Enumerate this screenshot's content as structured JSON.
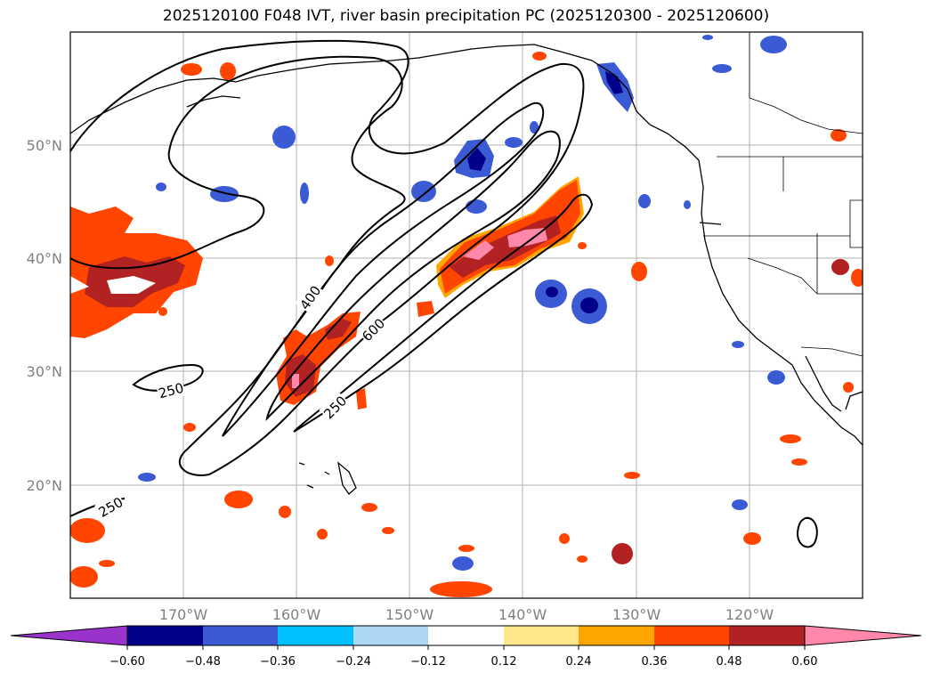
{
  "title": "2025120100 F048 IVT, river basin precipitation PC (2025120300 - 2025120600)",
  "lat_labels": [
    "50°N",
    "40°N",
    "30°N",
    "20°N"
  ],
  "lon_labels": [
    "170°W",
    "160°W",
    "150°W",
    "140°W",
    "130°W",
    "120°W"
  ],
  "contour_labels": [
    "400",
    "600",
    "250",
    "250",
    "250"
  ],
  "colorbar": {
    "colors": [
      "#9933cc",
      "#00008b",
      "#3b5bd5",
      "#00bfff",
      "#add8f5",
      "#ffffff",
      "#ffe88c",
      "#ffa500",
      "#ff4500",
      "#b22222",
      "#ff88aa"
    ],
    "ticks": [
      "−0.60",
      "−0.48",
      "−0.36",
      "−0.24",
      "−0.12",
      "0.12",
      "0.24",
      "0.36",
      "0.48",
      "0.60"
    ]
  },
  "colors": {
    "ivt_contour": "#000000",
    "grid": "#b0b0b0",
    "coast": "#000000"
  }
}
